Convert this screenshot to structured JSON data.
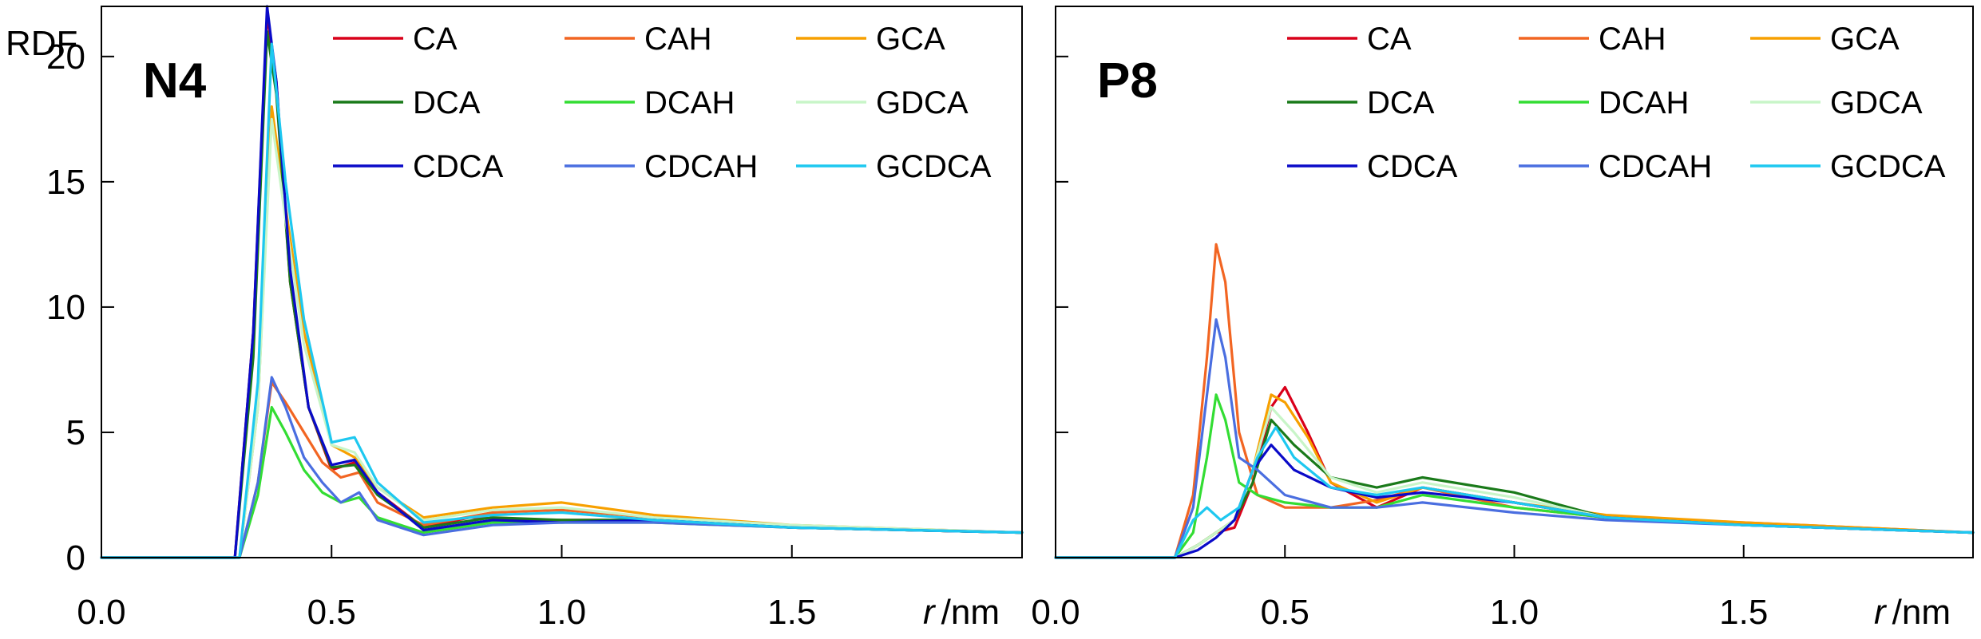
{
  "chart_data": [
    {
      "type": "line",
      "title": "N4",
      "ylabel": "RDF",
      "xlabel_italic": "r",
      "xlabel_unit": "/nm",
      "xlim": [
        0,
        2
      ],
      "ylim": [
        0,
        22
      ],
      "xticks": [
        "0.0",
        "0.5",
        "1.0",
        "1.5"
      ],
      "yticks": [
        "0",
        "5",
        "10",
        "15",
        "20"
      ],
      "series": [
        {
          "name": "CA",
          "color": "#d9001a",
          "x": [
            0,
            0.29,
            0.33,
            0.36,
            0.38,
            0.41,
            0.45,
            0.5,
            0.55,
            0.6,
            0.7,
            0.8,
            0.95,
            1.2,
            1.5,
            2.0
          ],
          "y": [
            0,
            0,
            9,
            21.7,
            19,
            11,
            6,
            3.5,
            3.8,
            2.6,
            1.2,
            1.6,
            1.5,
            1.5,
            1.2,
            1.0
          ]
        },
        {
          "name": "CAH",
          "color": "#f26522",
          "x": [
            0,
            0.3,
            0.34,
            0.37,
            0.4,
            0.44,
            0.48,
            0.52,
            0.56,
            0.6,
            0.7,
            0.85,
            1.0,
            1.2,
            1.5,
            2.0
          ],
          "y": [
            0,
            0,
            3,
            7,
            6.2,
            5,
            3.8,
            3.2,
            3.4,
            2.2,
            1.3,
            1.8,
            1.9,
            1.6,
            1.2,
            1.0
          ]
        },
        {
          "name": "GCA",
          "color": "#f7a000",
          "x": [
            0,
            0.3,
            0.34,
            0.37,
            0.4,
            0.44,
            0.5,
            0.55,
            0.6,
            0.7,
            0.85,
            1.0,
            1.2,
            1.5,
            2.0
          ],
          "y": [
            0,
            0,
            6,
            18,
            14,
            9,
            4.5,
            4,
            2.8,
            1.6,
            2.0,
            2.2,
            1.7,
            1.3,
            1.0
          ]
        },
        {
          "name": "DCA",
          "color": "#1a7a1a",
          "x": [
            0,
            0.29,
            0.33,
            0.36,
            0.38,
            0.41,
            0.45,
            0.5,
            0.55,
            0.6,
            0.7,
            0.85,
            1.0,
            1.2,
            1.5,
            2.0
          ],
          "y": [
            0,
            0,
            8,
            21,
            18.5,
            11,
            6,
            3.6,
            3.7,
            2.5,
            1.2,
            1.6,
            1.5,
            1.5,
            1.2,
            1.0
          ]
        },
        {
          "name": "DCAH",
          "color": "#33dd33",
          "x": [
            0,
            0.3,
            0.34,
            0.37,
            0.4,
            0.44,
            0.48,
            0.52,
            0.56,
            0.6,
            0.7,
            0.85,
            1.0,
            1.2,
            1.5,
            2.0
          ],
          "y": [
            0,
            0,
            2.5,
            6,
            5,
            3.5,
            2.6,
            2.2,
            2.4,
            1.6,
            1.0,
            1.4,
            1.4,
            1.4,
            1.2,
            1.0
          ]
        },
        {
          "name": "GDCA",
          "color": "#c8f5c8",
          "x": [
            0,
            0.3,
            0.34,
            0.37,
            0.4,
            0.44,
            0.5,
            0.55,
            0.6,
            0.7,
            0.85,
            1.0,
            1.2,
            1.5,
            2.0
          ],
          "y": [
            0,
            0,
            6,
            17.5,
            13.5,
            8.5,
            4.5,
            4.2,
            2.8,
            1.5,
            1.9,
            2.0,
            1.6,
            1.3,
            1.0
          ]
        },
        {
          "name": "CDCA",
          "color": "#0a0ac8",
          "x": [
            0,
            0.29,
            0.33,
            0.36,
            0.38,
            0.41,
            0.45,
            0.5,
            0.55,
            0.6,
            0.7,
            0.85,
            1.0,
            1.2,
            1.5,
            2.0
          ],
          "y": [
            0,
            0,
            9,
            22,
            19,
            11.5,
            6,
            3.7,
            3.9,
            2.6,
            1.1,
            1.5,
            1.4,
            1.5,
            1.2,
            1.0
          ]
        },
        {
          "name": "CDCAH",
          "color": "#4a6ee0",
          "x": [
            0,
            0.3,
            0.34,
            0.37,
            0.4,
            0.44,
            0.48,
            0.52,
            0.56,
            0.6,
            0.7,
            0.85,
            1.0,
            1.2,
            1.5,
            2.0
          ],
          "y": [
            0,
            0,
            3,
            7.2,
            6,
            4,
            3,
            2.2,
            2.6,
            1.5,
            0.9,
            1.3,
            1.4,
            1.4,
            1.2,
            1.0
          ]
        },
        {
          "name": "GCDCA",
          "color": "#1ec8f0",
          "x": [
            0,
            0.3,
            0.34,
            0.37,
            0.4,
            0.44,
            0.5,
            0.55,
            0.6,
            0.7,
            0.85,
            1.0,
            1.2,
            1.5,
            2.0
          ],
          "y": [
            0,
            0,
            7,
            20.5,
            15,
            9.5,
            4.6,
            4.8,
            3.0,
            1.4,
            1.7,
            1.8,
            1.5,
            1.2,
            1.0
          ]
        }
      ]
    },
    {
      "type": "line",
      "title": "P8",
      "ylabel": "",
      "xlabel_italic": "r",
      "xlabel_unit": "/nm",
      "xlim": [
        0,
        2
      ],
      "ylim": [
        0,
        22
      ],
      "xticks": [
        "0.0",
        "0.5",
        "1.0",
        "1.5"
      ],
      "yticks": [
        "",
        "",
        "",
        "",
        ""
      ],
      "series": [
        {
          "name": "CA",
          "color": "#d9001a",
          "x": [
            0,
            0.26,
            0.31,
            0.35,
            0.39,
            0.43,
            0.47,
            0.5,
            0.55,
            0.6,
            0.7,
            0.8,
            1.0,
            1.2,
            1.5,
            2.0
          ],
          "y": [
            0,
            0,
            0.5,
            1.0,
            1.2,
            3.0,
            6.0,
            6.8,
            5.0,
            3.0,
            2.0,
            2.8,
            2.2,
            1.6,
            1.3,
            1.0
          ]
        },
        {
          "name": "CAH",
          "color": "#f26522",
          "x": [
            0,
            0.26,
            0.3,
            0.33,
            0.35,
            0.37,
            0.4,
            0.44,
            0.5,
            0.6,
            0.7,
            0.8,
            1.0,
            1.2,
            1.5,
            2.0
          ],
          "y": [
            0,
            0,
            2.5,
            8,
            12.5,
            11,
            5,
            2.5,
            2.0,
            2.0,
            2.3,
            2.8,
            2.0,
            1.6,
            1.4,
            1.0
          ]
        },
        {
          "name": "GCA",
          "color": "#f7a000",
          "x": [
            0,
            0.26,
            0.31,
            0.35,
            0.39,
            0.43,
            0.47,
            0.5,
            0.55,
            0.6,
            0.7,
            0.8,
            1.0,
            1.2,
            1.5,
            2.0
          ],
          "y": [
            0,
            0,
            0.5,
            1.0,
            1.5,
            3.5,
            6.5,
            6.2,
            4.8,
            3.0,
            2.2,
            2.8,
            2.2,
            1.7,
            1.4,
            1.0
          ]
        },
        {
          "name": "DCA",
          "color": "#1a7a1a",
          "x": [
            0,
            0.26,
            0.31,
            0.35,
            0.39,
            0.43,
            0.47,
            0.52,
            0.6,
            0.7,
            0.8,
            1.0,
            1.2,
            1.5,
            2.0
          ],
          "y": [
            0,
            0,
            0.5,
            1.0,
            1.5,
            3.0,
            5.5,
            4.5,
            3.2,
            2.8,
            3.2,
            2.6,
            1.6,
            1.3,
            1.0
          ]
        },
        {
          "name": "DCAH",
          "color": "#33dd33",
          "x": [
            0,
            0.26,
            0.3,
            0.33,
            0.35,
            0.37,
            0.4,
            0.44,
            0.5,
            0.6,
            0.7,
            0.8,
            1.0,
            1.2,
            1.5,
            2.0
          ],
          "y": [
            0,
            0,
            1.0,
            4,
            6.5,
            5.5,
            3.0,
            2.5,
            2.2,
            2.0,
            2.0,
            2.5,
            2.0,
            1.6,
            1.3,
            1.0
          ]
        },
        {
          "name": "GDCA",
          "color": "#c8f5c8",
          "x": [
            0,
            0.26,
            0.31,
            0.35,
            0.39,
            0.43,
            0.47,
            0.52,
            0.6,
            0.7,
            0.8,
            1.0,
            1.2,
            1.5,
            2.0
          ],
          "y": [
            0,
            0,
            0.5,
            1.0,
            1.5,
            3.5,
            6.0,
            5.0,
            3.2,
            2.6,
            3.0,
            2.4,
            1.6,
            1.3,
            1.0
          ]
        },
        {
          "name": "CDCA",
          "color": "#0a0ac8",
          "x": [
            0,
            0.26,
            0.31,
            0.35,
            0.39,
            0.43,
            0.47,
            0.52,
            0.6,
            0.7,
            0.8,
            1.0,
            1.2,
            1.5,
            2.0
          ],
          "y": [
            0,
            0,
            0.3,
            0.8,
            1.5,
            3.5,
            4.5,
            3.5,
            2.8,
            2.4,
            2.6,
            2.2,
            1.6,
            1.3,
            1.0
          ]
        },
        {
          "name": "CDCAH",
          "color": "#4a6ee0",
          "x": [
            0,
            0.26,
            0.3,
            0.33,
            0.35,
            0.37,
            0.4,
            0.44,
            0.5,
            0.6,
            0.7,
            0.8,
            1.0,
            1.2,
            1.5,
            2.0
          ],
          "y": [
            0,
            0,
            2.0,
            6.5,
            9.5,
            8.0,
            4.0,
            3.5,
            2.5,
            2.0,
            2.0,
            2.2,
            1.8,
            1.5,
            1.3,
            1.0
          ]
        },
        {
          "name": "GCDCA",
          "color": "#1ec8f0",
          "x": [
            0,
            0.26,
            0.3,
            0.33,
            0.36,
            0.4,
            0.44,
            0.48,
            0.52,
            0.6,
            0.7,
            0.8,
            1.0,
            1.2,
            1.5,
            2.0
          ],
          "y": [
            0,
            0,
            1.5,
            2.0,
            1.5,
            2.0,
            4.0,
            5.2,
            4.0,
            2.8,
            2.5,
            2.8,
            2.2,
            1.6,
            1.3,
            1.0
          ]
        }
      ]
    }
  ]
}
